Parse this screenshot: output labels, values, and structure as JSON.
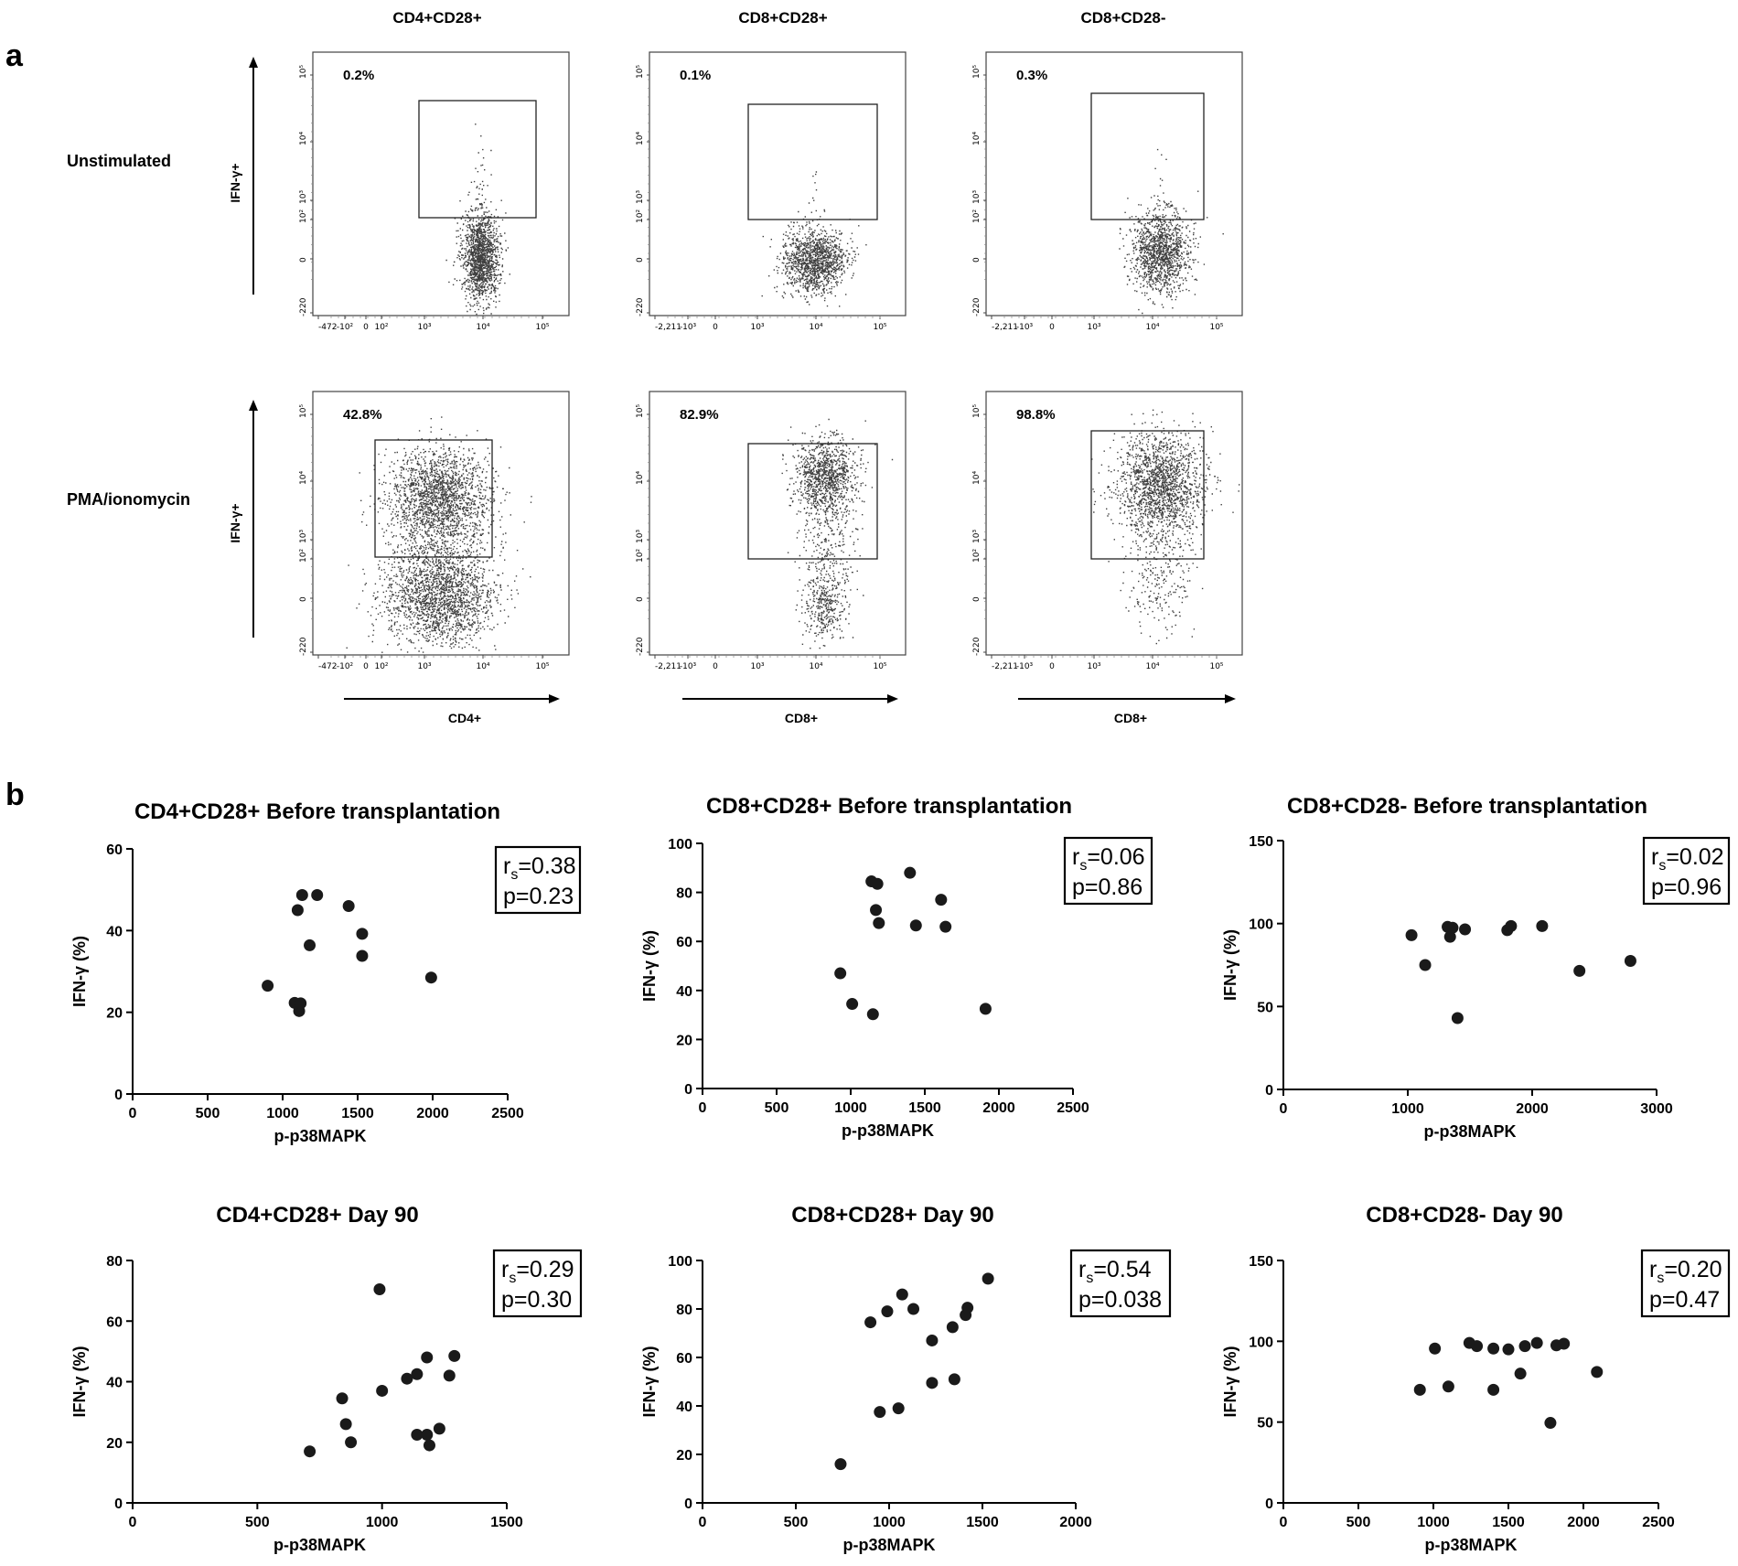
{
  "panel_a": {
    "label": "a",
    "column_headers": [
      "CD4+CD28+",
      "CD8+CD28+",
      "CD8+CD28-"
    ],
    "row_labels": [
      "Unstimulated",
      "PMA/ionomycin"
    ],
    "y_axis_label": "IFN-γ+",
    "x_axis_labels": [
      "CD4+",
      "CD8+",
      "CD8+"
    ],
    "y_tick_labels": [
      "-220",
      "0",
      "10²",
      "10³",
      "10⁴",
      "10⁵"
    ],
    "x_tick_labels_cd4": [
      "-472",
      "-10²",
      "0",
      "10²",
      "10³",
      "10⁴",
      "10⁵"
    ],
    "x_tick_labels_cd8": [
      "-2,211",
      "-10³",
      "0",
      "10³",
      "10⁴",
      "10⁵"
    ],
    "gate_percentages": [
      [
        "0.2%",
        "0.1%",
        "0.3%"
      ],
      [
        "42.8%",
        "82.9%",
        "98.8%"
      ]
    ]
  },
  "panel_b": {
    "label": "b"
  },
  "chart_data": [
    {
      "type": "scatter",
      "title": "CD4+CD28+ Before transplantation",
      "xlabel": "p-p38MAPK",
      "ylabel": "IFN-γ (%)",
      "xlim": [
        0,
        2500
      ],
      "ylim": [
        0,
        60
      ],
      "xticks": [
        0,
        500,
        1000,
        1500,
        2000,
        2500
      ],
      "yticks": [
        0,
        20,
        40,
        60
      ],
      "rs": "0.38",
      "p": "0.23",
      "points": [
        [
          900,
          26.5
        ],
        [
          1080,
          22.3
        ],
        [
          1100,
          45
        ],
        [
          1110,
          20.3
        ],
        [
          1120,
          22.2
        ],
        [
          1130,
          48.7
        ],
        [
          1180,
          36.4
        ],
        [
          1230,
          48.7
        ],
        [
          1440,
          46
        ],
        [
          1530,
          39.2
        ],
        [
          1530,
          33.8
        ],
        [
          1990,
          28.5
        ]
      ]
    },
    {
      "type": "scatter",
      "title": "CD8+CD28+ Before transplantation",
      "xlabel": "p-p38MAPK",
      "ylabel": "IFN-γ (%)",
      "xlim": [
        0,
        2500
      ],
      "ylim": [
        0,
        100
      ],
      "xticks": [
        0,
        500,
        1000,
        1500,
        2000,
        2500
      ],
      "yticks": [
        0,
        20,
        40,
        60,
        80,
        100
      ],
      "rs": "0.06",
      "p": "0.86",
      "points": [
        [
          930,
          47
        ],
        [
          1010,
          34.5
        ],
        [
          1140,
          84.5
        ],
        [
          1150,
          30.3
        ],
        [
          1170,
          72.8
        ],
        [
          1180,
          83.5
        ],
        [
          1190,
          67.5
        ],
        [
          1400,
          88
        ],
        [
          1440,
          66.5
        ],
        [
          1610,
          77
        ],
        [
          1640,
          66
        ],
        [
          1910,
          32.5
        ]
      ]
    },
    {
      "type": "scatter",
      "title": "CD8+CD28- Before transplantation",
      "xlabel": "p-p38MAPK",
      "ylabel": "IFN-γ (%)",
      "xlim": [
        0,
        3000
      ],
      "ylim": [
        0,
        150
      ],
      "xticks": [
        0,
        1000,
        2000,
        3000
      ],
      "yticks": [
        0,
        50,
        100,
        150
      ],
      "rs": "0.02",
      "p": "0.96",
      "points": [
        [
          1030,
          93
        ],
        [
          1140,
          75
        ],
        [
          1320,
          98
        ],
        [
          1340,
          92
        ],
        [
          1360,
          97.5
        ],
        [
          1400,
          43
        ],
        [
          1460,
          96.5
        ],
        [
          1800,
          96
        ],
        [
          1830,
          98.5
        ],
        [
          2080,
          98.5
        ],
        [
          2380,
          71.5
        ],
        [
          2790,
          77.5
        ]
      ]
    },
    {
      "type": "scatter",
      "title": "CD4+CD28+ Day 90",
      "xlabel": "p-p38MAPK",
      "ylabel": "IFN-γ (%)",
      "xlim": [
        0,
        1500
      ],
      "ylim": [
        0,
        80
      ],
      "xticks": [
        0,
        500,
        1000,
        1500
      ],
      "yticks": [
        0,
        20,
        40,
        60,
        80
      ],
      "rs": "0.29",
      "p": "0.30",
      "points": [
        [
          710,
          17
        ],
        [
          840,
          34.5
        ],
        [
          855,
          26
        ],
        [
          875,
          20
        ],
        [
          990,
          70.5
        ],
        [
          1000,
          37
        ],
        [
          1100,
          41
        ],
        [
          1140,
          42.5
        ],
        [
          1140,
          22.5
        ],
        [
          1180,
          22.5
        ],
        [
          1180,
          48
        ],
        [
          1190,
          19
        ],
        [
          1230,
          24.5
        ],
        [
          1270,
          42
        ],
        [
          1290,
          48.5
        ]
      ]
    },
    {
      "type": "scatter",
      "title": "CD8+CD28+  Day 90",
      "xlabel": "p-p38MAPK",
      "ylabel": "IFN-γ (%)",
      "xlim": [
        0,
        2000
      ],
      "ylim": [
        0,
        100
      ],
      "xticks": [
        0,
        500,
        1000,
        1500,
        2000
      ],
      "yticks": [
        0,
        20,
        40,
        60,
        80,
        100
      ],
      "rs": "0.54",
      "p": "0.038",
      "points": [
        [
          740,
          16
        ],
        [
          900,
          74.5
        ],
        [
          950,
          37.5
        ],
        [
          990,
          79
        ],
        [
          1050,
          39
        ],
        [
          1070,
          86
        ],
        [
          1130,
          80
        ],
        [
          1230,
          67
        ],
        [
          1230,
          49.5
        ],
        [
          1340,
          72.5
        ],
        [
          1350,
          51
        ],
        [
          1410,
          77.5
        ],
        [
          1420,
          80.5
        ],
        [
          1530,
          92.5
        ]
      ]
    },
    {
      "type": "scatter",
      "title": "CD8+CD28- Day 90",
      "xlabel": "p-p38MAPK",
      "ylabel": "IFN-γ (%)",
      "xlim": [
        0,
        2500
      ],
      "ylim": [
        0,
        150
      ],
      "xticks": [
        0,
        500,
        1000,
        1500,
        2000,
        2500
      ],
      "yticks": [
        0,
        50,
        100,
        150
      ],
      "rs": "0.20",
      "p": "0.47",
      "points": [
        [
          910,
          70
        ],
        [
          1010,
          95.5
        ],
        [
          1100,
          72
        ],
        [
          1240,
          99
        ],
        [
          1290,
          97
        ],
        [
          1400,
          95.5
        ],
        [
          1400,
          70
        ],
        [
          1500,
          95
        ],
        [
          1580,
          80
        ],
        [
          1610,
          97
        ],
        [
          1690,
          99
        ],
        [
          1780,
          49.5
        ],
        [
          1820,
          97.5
        ],
        [
          1870,
          98.5
        ],
        [
          2090,
          81
        ]
      ]
    }
  ]
}
